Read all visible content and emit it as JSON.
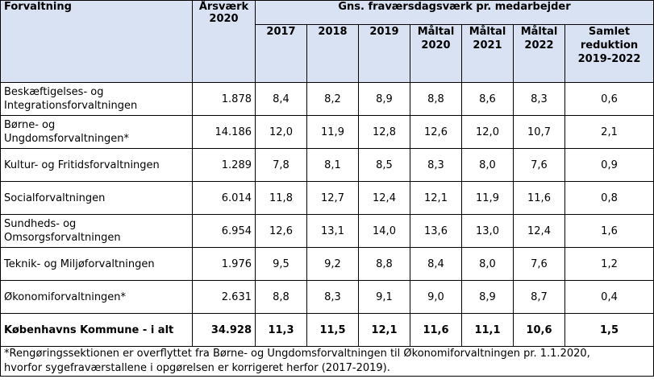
{
  "headers": {
    "forvaltning": "Forvaltning",
    "aarsvaerk": [
      "Årsværk",
      "2020"
    ],
    "group": "Gns. fraværsdagsværk pr. medarbejder",
    "years": [
      [
        "2017"
      ],
      [
        "2018"
      ],
      [
        "2019"
      ],
      [
        "Måltal",
        "2020"
      ],
      [
        "Måltal",
        "2021"
      ],
      [
        "Måltal",
        "2022"
      ],
      [
        "Samlet",
        "reduktion",
        "2019-2022"
      ]
    ]
  },
  "rows": [
    {
      "name": [
        "Beskæftigelses- og",
        "Integrationsforvaltningen"
      ],
      "aarsvaerk": "1.878",
      "values": [
        "8,4",
        "8,2",
        "8,9",
        "8,8",
        "8,6",
        "8,3",
        "0,6"
      ]
    },
    {
      "name": [
        "Børne- og",
        "Ungdomsforvaltningen*"
      ],
      "aarsvaerk": "14.186",
      "values": [
        "12,0",
        "11,9",
        "12,8",
        "12,6",
        "12,0",
        "10,7",
        "2,1"
      ]
    },
    {
      "name": [
        "Kultur- og Fritidsforvaltningen"
      ],
      "aarsvaerk": "1.289",
      "values": [
        "7,8",
        "8,1",
        "8,5",
        "8,3",
        "8,0",
        "7,6",
        "0,9"
      ]
    },
    {
      "name": [
        "Socialforvaltningen"
      ],
      "aarsvaerk": "6.014",
      "values": [
        "11,8",
        "12,7",
        "12,4",
        "12,1",
        "11,9",
        "11,6",
        "0,8"
      ]
    },
    {
      "name": [
        "Sundheds- og",
        "Omsorgsforvaltningen"
      ],
      "aarsvaerk": "6.954",
      "values": [
        "12,6",
        "13,1",
        "14,0",
        "13,6",
        "13,0",
        "12,4",
        "1,6"
      ]
    },
    {
      "name": [
        "Teknik- og Miljøforvaltningen"
      ],
      "aarsvaerk": "1.976",
      "values": [
        "9,5",
        "9,2",
        "8,8",
        "8,4",
        "8,0",
        "7,6",
        "1,2"
      ]
    },
    {
      "name": [
        "Økonomiforvaltningen*"
      ],
      "aarsvaerk": "2.631",
      "values": [
        "8,8",
        "8,3",
        "9,1",
        "9,0",
        "8,9",
        "8,7",
        "0,4"
      ]
    }
  ],
  "total": {
    "name": "Københavns Kommune - i alt",
    "aarsvaerk": "34.928",
    "values": [
      "11,3",
      "11,5",
      "12,1",
      "11,6",
      "11,1",
      "10,6",
      "1,5"
    ]
  },
  "footnote": [
    "*Rengøringssektionen er overflyttet fra Børne- og Ungdomsforvaltningen til Økonomiforvaltningen pr. 1.1.2020,",
    "hvorfor sygefraværstallene i opgørelsen er korrigeret herfor (2017-2019)."
  ]
}
